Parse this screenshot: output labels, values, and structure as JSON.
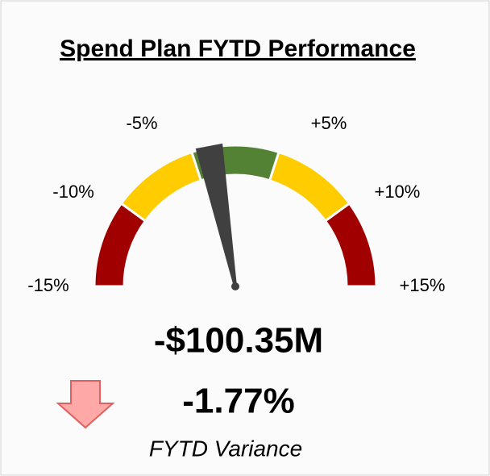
{
  "chart_data": {
    "type": "gauge",
    "title": "Spend Plan FYTD Performance",
    "ylim": [
      -15,
      15
    ],
    "yticks": [
      {
        "value": -15,
        "label": "-15%"
      },
      {
        "value": -10,
        "label": "-10%"
      },
      {
        "value": -5,
        "label": "-5%"
      },
      {
        "value": 5,
        "label": "+5%"
      },
      {
        "value": 10,
        "label": "+10%"
      },
      {
        "value": 15,
        "label": "+15%"
      }
    ],
    "bands": [
      {
        "from": -15,
        "to": -9,
        "color": "#a00000"
      },
      {
        "from": -9,
        "to": -3,
        "color": "#ffcc00"
      },
      {
        "from": -3,
        "to": 3,
        "color": "#548235"
      },
      {
        "from": 3,
        "to": 9,
        "color": "#ffcc00"
      },
      {
        "from": 9,
        "to": 15,
        "color": "#a00000"
      }
    ],
    "value": -1.77,
    "value_label": "-1.77%",
    "amount": -100350000,
    "amount_label": "-$100.35M",
    "needle_color": "#404040",
    "subtitle": "FYTD Variance"
  }
}
